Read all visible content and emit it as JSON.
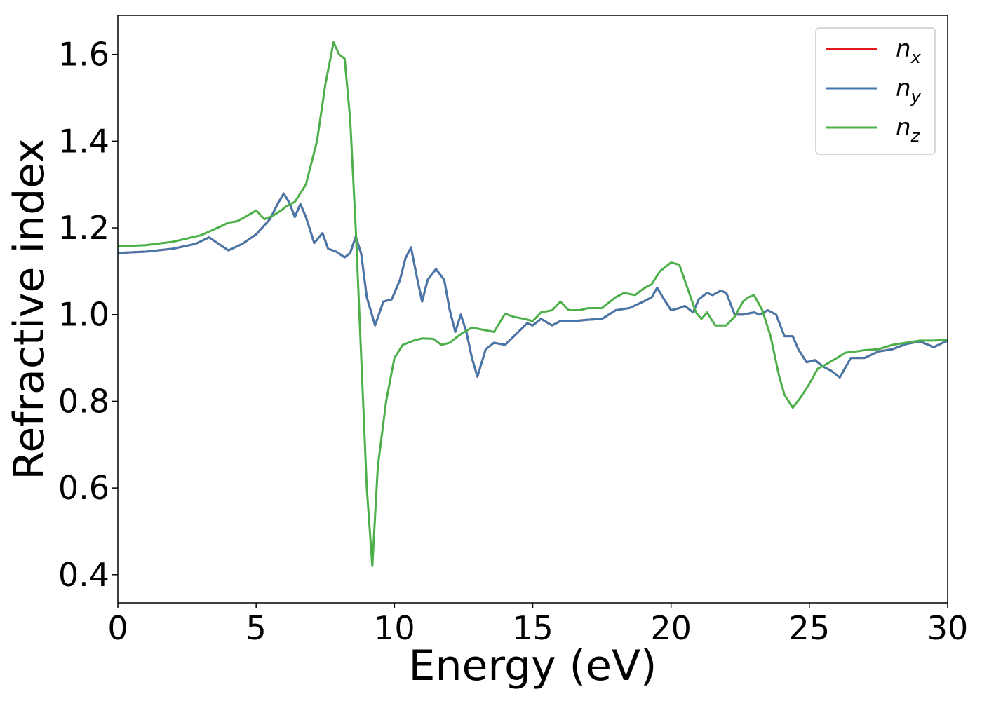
{
  "chart_data": {
    "type": "line",
    "xlabel": "Energy (eV)",
    "ylabel": "Refractive index",
    "xlim": [
      0,
      30
    ],
    "ylim": [
      0.335,
      1.69
    ],
    "xticks": [
      0,
      5,
      10,
      15,
      20,
      25,
      30
    ],
    "xtick_labels": [
      "0",
      "5",
      "10",
      "15",
      "20",
      "25",
      "30"
    ],
    "yticks": [
      0.4,
      0.6,
      0.8,
      1.0,
      1.2,
      1.4,
      1.6
    ],
    "ytick_labels": [
      "0.4",
      "0.6",
      "0.8",
      "1.0",
      "1.2",
      "1.4",
      "1.6"
    ],
    "grid": false,
    "legend_position": "top-right",
    "series": [
      {
        "name": "n_x",
        "legend_base": "n",
        "legend_sub": "x",
        "color": "#e41a1c",
        "x": [
          0,
          1,
          2,
          2.8,
          3.3,
          3.6,
          4.0,
          4.5,
          5.0,
          5.5,
          5.8,
          6.0,
          6.2,
          6.4,
          6.6,
          6.8,
          7.1,
          7.4,
          7.6,
          7.9,
          8.2,
          8.4,
          8.6,
          8.8,
          9.0,
          9.3,
          9.6,
          9.9,
          10.2,
          10.4,
          10.6,
          10.8,
          11.0,
          11.2,
          11.5,
          11.8,
          12.0,
          12.2,
          12.4,
          12.6,
          12.8,
          13.0,
          13.3,
          13.6,
          14.0,
          14.4,
          14.8,
          15.0,
          15.3,
          15.7,
          16.0,
          16.5,
          17.0,
          17.5,
          18.0,
          18.5,
          19.0,
          19.3,
          19.5,
          19.7,
          20.0,
          20.3,
          20.5,
          20.8,
          21.0,
          21.3,
          21.5,
          21.8,
          22.0,
          22.3,
          22.6,
          23.0,
          23.2,
          23.5,
          23.8,
          24.1,
          24.4,
          24.6,
          24.9,
          25.2,
          25.5,
          25.8,
          26.1,
          26.5,
          27.0,
          27.5,
          28.0,
          28.5,
          29.0,
          29.5,
          30.0
        ],
        "y": [
          1.142,
          1.145,
          1.152,
          1.163,
          1.178,
          1.165,
          1.148,
          1.163,
          1.185,
          1.22,
          1.258,
          1.279,
          1.258,
          1.225,
          1.255,
          1.225,
          1.165,
          1.188,
          1.152,
          1.145,
          1.132,
          1.142,
          1.18,
          1.14,
          1.04,
          0.975,
          1.03,
          1.035,
          1.08,
          1.13,
          1.155,
          1.09,
          1.03,
          1.08,
          1.105,
          1.08,
          1.01,
          0.96,
          1.0,
          0.96,
          0.9,
          0.857,
          0.92,
          0.935,
          0.93,
          0.955,
          0.98,
          0.975,
          0.99,
          0.975,
          0.985,
          0.985,
          0.988,
          0.99,
          1.01,
          1.015,
          1.03,
          1.04,
          1.062,
          1.04,
          1.01,
          1.015,
          1.02,
          1.005,
          1.035,
          1.05,
          1.045,
          1.055,
          1.05,
          1.0,
          1.0,
          1.005,
          1.0,
          1.01,
          1.0,
          0.95,
          0.95,
          0.92,
          0.89,
          0.895,
          0.88,
          0.87,
          0.855,
          0.9,
          0.9,
          0.915,
          0.92,
          0.932,
          0.938,
          0.925,
          0.94
        ]
      },
      {
        "name": "n_y",
        "legend_base": "n",
        "legend_sub": "y",
        "color": "#4477aa",
        "x": [
          0,
          1,
          2,
          2.8,
          3.3,
          3.6,
          4.0,
          4.5,
          5.0,
          5.5,
          5.8,
          6.0,
          6.2,
          6.4,
          6.6,
          6.8,
          7.1,
          7.4,
          7.6,
          7.9,
          8.2,
          8.4,
          8.6,
          8.8,
          9.0,
          9.3,
          9.6,
          9.9,
          10.2,
          10.4,
          10.6,
          10.8,
          11.0,
          11.2,
          11.5,
          11.8,
          12.0,
          12.2,
          12.4,
          12.6,
          12.8,
          13.0,
          13.3,
          13.6,
          14.0,
          14.4,
          14.8,
          15.0,
          15.3,
          15.7,
          16.0,
          16.5,
          17.0,
          17.5,
          18.0,
          18.5,
          19.0,
          19.3,
          19.5,
          19.7,
          20.0,
          20.3,
          20.5,
          20.8,
          21.0,
          21.3,
          21.5,
          21.8,
          22.0,
          22.3,
          22.6,
          23.0,
          23.2,
          23.5,
          23.8,
          24.1,
          24.4,
          24.6,
          24.9,
          25.2,
          25.5,
          25.8,
          26.1,
          26.5,
          27.0,
          27.5,
          28.0,
          28.5,
          29.0,
          29.5,
          30.0
        ],
        "y": [
          1.142,
          1.145,
          1.152,
          1.163,
          1.178,
          1.165,
          1.148,
          1.163,
          1.185,
          1.22,
          1.258,
          1.279,
          1.258,
          1.225,
          1.255,
          1.225,
          1.165,
          1.188,
          1.152,
          1.145,
          1.132,
          1.142,
          1.18,
          1.14,
          1.04,
          0.975,
          1.03,
          1.035,
          1.08,
          1.13,
          1.155,
          1.09,
          1.03,
          1.08,
          1.105,
          1.08,
          1.01,
          0.96,
          1.0,
          0.96,
          0.9,
          0.857,
          0.92,
          0.935,
          0.93,
          0.955,
          0.98,
          0.975,
          0.99,
          0.975,
          0.985,
          0.985,
          0.988,
          0.99,
          1.01,
          1.015,
          1.03,
          1.04,
          1.062,
          1.04,
          1.01,
          1.015,
          1.02,
          1.005,
          1.035,
          1.05,
          1.045,
          1.055,
          1.05,
          1.0,
          1.0,
          1.005,
          1.0,
          1.01,
          1.0,
          0.95,
          0.95,
          0.92,
          0.89,
          0.895,
          0.88,
          0.87,
          0.855,
          0.9,
          0.9,
          0.915,
          0.92,
          0.932,
          0.938,
          0.925,
          0.94
        ]
      },
      {
        "name": "n_z",
        "legend_base": "n",
        "legend_sub": "z",
        "color": "#4daf4a",
        "x": [
          0,
          1,
          2,
          3,
          3.5,
          4.0,
          4.3,
          4.6,
          5.0,
          5.3,
          5.6,
          5.9,
          6.1,
          6.4,
          6.8,
          7.2,
          7.5,
          7.8,
          8.0,
          8.2,
          8.4,
          8.6,
          8.8,
          9.0,
          9.2,
          9.4,
          9.7,
          10.0,
          10.3,
          10.7,
          11.0,
          11.4,
          11.7,
          12.0,
          12.4,
          12.8,
          13.2,
          13.6,
          14.0,
          14.3,
          14.7,
          15.0,
          15.3,
          15.7,
          16.0,
          16.3,
          16.7,
          17.0,
          17.5,
          18.0,
          18.3,
          18.7,
          19.0,
          19.3,
          19.6,
          20.0,
          20.3,
          20.6,
          20.9,
          21.1,
          21.3,
          21.6,
          22.0,
          22.3,
          22.6,
          22.8,
          23.0,
          23.3,
          23.6,
          23.9,
          24.1,
          24.4,
          24.7,
          25.0,
          25.3,
          25.6,
          26.0,
          26.3,
          26.7,
          27.0,
          27.5,
          28.0,
          28.5,
          29.0,
          29.5,
          30.0
        ],
        "y": [
          1.157,
          1.16,
          1.168,
          1.183,
          1.197,
          1.212,
          1.215,
          1.225,
          1.24,
          1.22,
          1.228,
          1.24,
          1.25,
          1.26,
          1.3,
          1.4,
          1.53,
          1.628,
          1.6,
          1.59,
          1.45,
          1.2,
          0.9,
          0.6,
          0.42,
          0.65,
          0.8,
          0.9,
          0.93,
          0.94,
          0.945,
          0.944,
          0.93,
          0.935,
          0.955,
          0.97,
          0.965,
          0.96,
          1.002,
          0.995,
          0.99,
          0.985,
          1.005,
          1.01,
          1.03,
          1.01,
          1.01,
          1.015,
          1.015,
          1.04,
          1.05,
          1.045,
          1.06,
          1.07,
          1.1,
          1.12,
          1.115,
          1.06,
          1.005,
          0.99,
          1.005,
          0.975,
          0.975,
          0.995,
          1.03,
          1.04,
          1.045,
          1.01,
          0.95,
          0.86,
          0.815,
          0.785,
          0.81,
          0.84,
          0.875,
          0.885,
          0.9,
          0.912,
          0.915,
          0.918,
          0.92,
          0.93,
          0.935,
          0.94,
          0.94,
          0.942
        ]
      }
    ]
  }
}
